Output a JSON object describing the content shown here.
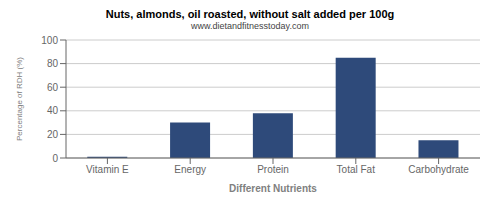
{
  "chart_data": {
    "type": "bar",
    "title": "Nuts, almonds, oil roasted, without salt added per 100g",
    "subtitle": "www.dietandfitnesstoday.com",
    "categories": [
      "Vitamin E",
      "Energy",
      "Protein",
      "Total Fat",
      "Carbohydrate"
    ],
    "values": [
      1,
      30,
      38,
      85,
      15
    ],
    "color": "#2e4a7a",
    "xlabel": "Different Nutrients",
    "ylabel": "Percentage of RDH (%)",
    "ylim": [
      0,
      100
    ],
    "yticks": [
      0,
      20,
      40,
      60,
      80,
      100
    ],
    "grid": true
  }
}
